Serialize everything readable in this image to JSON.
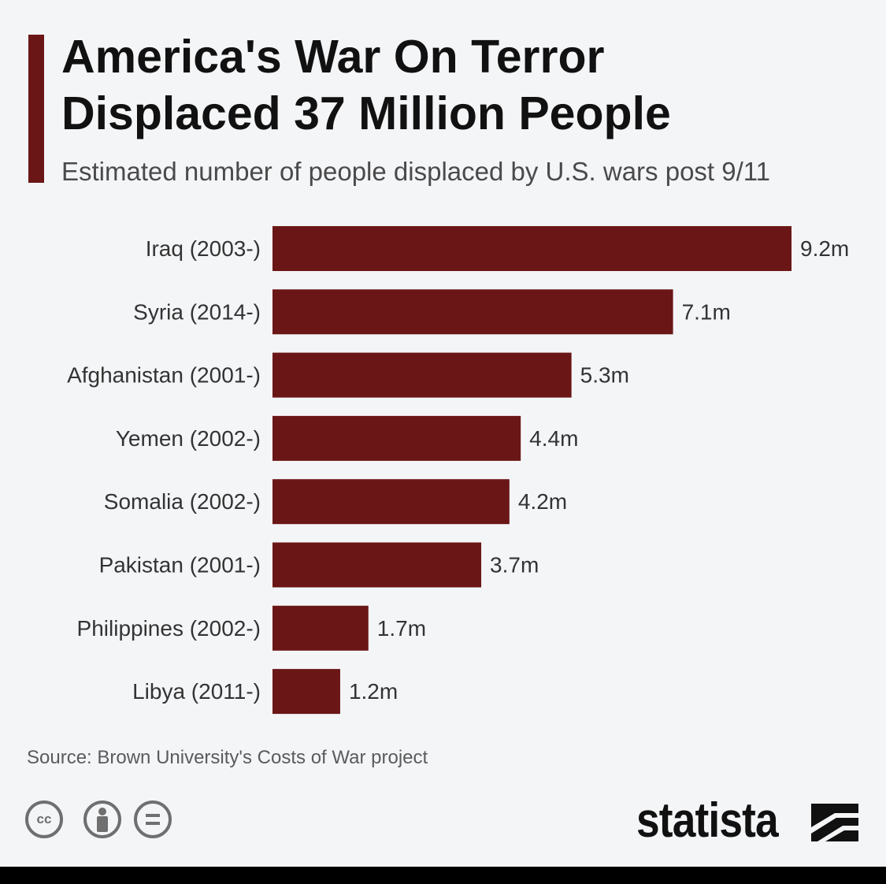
{
  "header": {
    "title_line1": "America's War On Terror",
    "title_line2": "Displaced 37 Million People",
    "subtitle": "Estimated number of people displaced by U.S. wars post 9/11"
  },
  "chart_data": {
    "type": "bar",
    "orientation": "horizontal",
    "title": "America's War On Terror Displaced 37 Million People",
    "subtitle": "Estimated number of people displaced by U.S. wars post 9/11",
    "xlabel": "",
    "ylabel": "",
    "unit": "m",
    "categories": [
      "Iraq (2003-)",
      "Syria (2014-)",
      "Afghanistan (2001-)",
      "Yemen (2002-)",
      "Somalia (2002-)",
      "Pakistan (2001-)",
      "Philippines (2002-)",
      "Libya (2011-)"
    ],
    "values": [
      9.2,
      7.1,
      5.3,
      4.4,
      4.2,
      3.7,
      1.7,
      1.2
    ],
    "value_labels": [
      "9.2m",
      "7.1m",
      "5.3m",
      "4.4m",
      "4.2m",
      "3.7m",
      "1.7m",
      "1.2m"
    ],
    "xlim": [
      0,
      9.2
    ],
    "grid": false,
    "legend": "none",
    "bar_color": "#6b1616"
  },
  "footer": {
    "source": "Source: Brown University's Costs of War project",
    "license_icons": [
      "cc-icon",
      "attribution-icon",
      "no-derivatives-icon"
    ],
    "logo_text": "statista"
  },
  "colors": {
    "accent": "#6b1616",
    "background": "#f4f5f7",
    "text": "#111111",
    "muted_text": "#4a4a4a"
  }
}
